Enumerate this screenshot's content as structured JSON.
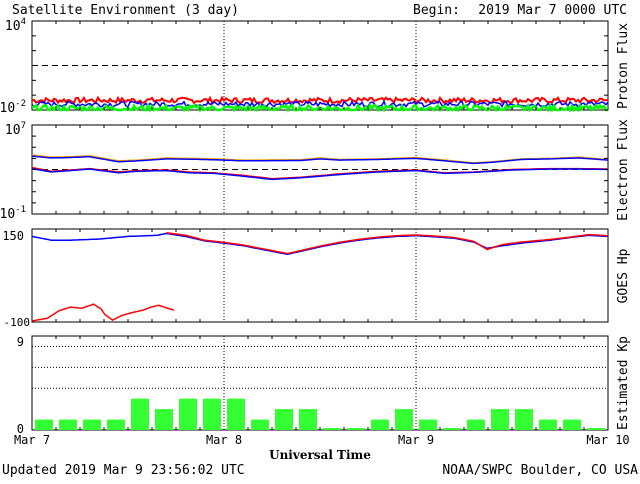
{
  "header": {
    "title": "Satellite Environment (3 day)",
    "begin_label": "Begin:",
    "begin_value": "2019 Mar 7 0000 UTC"
  },
  "footer": {
    "updated": "Updated 2019 Mar  9 23:56:02 UTC",
    "credit": "NOAA/SWPC Boulder, CO USA"
  },
  "colors": {
    "red": "#ff0000",
    "blue": "#0000ff",
    "green": "#00ff00",
    "orange": "#ffa500",
    "kp_bar": "#33ff33",
    "frame": "#000000"
  },
  "chart_data": [
    {
      "id": "proton",
      "type": "line",
      "ylabel": "Proton Flux",
      "yscale": "log",
      "ylim": [
        0.01,
        10000
      ],
      "tick_labels": {
        "top_base": "10",
        "top_exp": "4",
        "bottom_base": "10",
        "bottom_exp": "-2"
      },
      "threshold": 10,
      "series": [
        {
          "color": "#ff0000",
          "level": 0.045,
          "noise": 0.18,
          "width": 2
        },
        {
          "color": "#0000ff",
          "level": 0.025,
          "noise": 0.18,
          "width": 1.5
        },
        {
          "color": "#00ff00",
          "level": 0.013,
          "noise": 0.2,
          "width": 2.5
        }
      ]
    },
    {
      "id": "electron",
      "type": "line",
      "ylabel": "Electron Flux",
      "yscale": "log",
      "ylim": [
        0.1,
        10000000
      ],
      "tick_labels": {
        "top_base": "10",
        "top_exp": "7",
        "bottom_base": "10",
        "bottom_exp": "-1"
      },
      "threshold": 1000,
      "series": [
        {
          "color": "#ffa500",
          "points": [
            [
              0,
              20000
            ],
            [
              0.1,
              13000
            ],
            [
              0.2,
              14000
            ],
            [
              0.3,
              17000
            ],
            [
              0.45,
              6000
            ],
            [
              0.55,
              7000
            ],
            [
              0.7,
              11000
            ],
            [
              0.82,
              10000
            ],
            [
              0.95,
              9000
            ],
            [
              1.1,
              7000
            ],
            [
              1.4,
              7500
            ],
            [
              1.5,
              11000
            ],
            [
              1.6,
              8000
            ],
            [
              1.8,
              9000
            ],
            [
              2.0,
              12000
            ],
            [
              2.15,
              7000
            ],
            [
              2.3,
              4000
            ],
            [
              2.4,
              5000
            ],
            [
              2.55,
              9000
            ],
            [
              2.7,
              10000
            ],
            [
              2.85,
              13000
            ],
            [
              3.0,
              8000
            ]
          ]
        },
        {
          "color": "#0000ff",
          "points": [
            [
              0,
              16000
            ],
            [
              0.1,
              11000
            ],
            [
              0.2,
              12000
            ],
            [
              0.3,
              14000
            ],
            [
              0.45,
              5000
            ],
            [
              0.55,
              6000
            ],
            [
              0.7,
              9000
            ],
            [
              0.82,
              8500
            ],
            [
              0.95,
              7500
            ],
            [
              1.1,
              6000
            ],
            [
              1.4,
              6500
            ],
            [
              1.5,
              9000
            ],
            [
              1.6,
              7000
            ],
            [
              1.8,
              8000
            ],
            [
              2.0,
              10000
            ],
            [
              2.15,
              6000
            ],
            [
              2.3,
              3500
            ],
            [
              2.4,
              4500
            ],
            [
              2.55,
              8000
            ],
            [
              2.7,
              9000
            ],
            [
              2.85,
              11000
            ],
            [
              3.0,
              7000
            ]
          ]
        },
        {
          "color": "#ff0000",
          "points": [
            [
              0,
              1500
            ],
            [
              0.1,
              700
            ],
            [
              0.2,
              900
            ],
            [
              0.3,
              1200
            ],
            [
              0.45,
              600
            ],
            [
              0.55,
              800
            ],
            [
              0.7,
              900
            ],
            [
              0.82,
              600
            ],
            [
              0.95,
              500
            ],
            [
              1.1,
              300
            ],
            [
              1.25,
              150
            ],
            [
              1.4,
              200
            ],
            [
              1.6,
              400
            ],
            [
              1.8,
              700
            ],
            [
              2.0,
              900
            ],
            [
              2.15,
              500
            ],
            [
              2.3,
              600
            ],
            [
              2.5,
              1000
            ],
            [
              2.7,
              1200
            ],
            [
              2.85,
              1200
            ],
            [
              3.0,
              1100
            ]
          ]
        },
        {
          "color": "#0000ff",
          "points": [
            [
              0,
              1200
            ],
            [
              0.1,
              600
            ],
            [
              0.2,
              800
            ],
            [
              0.3,
              1100
            ],
            [
              0.45,
              500
            ],
            [
              0.55,
              700
            ],
            [
              0.7,
              800
            ],
            [
              0.82,
              500
            ],
            [
              0.95,
              450
            ],
            [
              1.1,
              250
            ],
            [
              1.25,
              130
            ],
            [
              1.4,
              180
            ],
            [
              1.6,
              350
            ],
            [
              1.8,
              600
            ],
            [
              2.0,
              800
            ],
            [
              2.15,
              450
            ],
            [
              2.3,
              550
            ],
            [
              2.5,
              900
            ],
            [
              2.7,
              1100
            ],
            [
              2.85,
              1100
            ],
            [
              3.0,
              1000
            ]
          ]
        }
      ]
    },
    {
      "id": "goes_hp",
      "type": "line",
      "ylabel": "GOES Hp",
      "ylim": [
        -100,
        150
      ],
      "tick_labels": {
        "top": "150",
        "bottom": "-100"
      },
      "series": [
        {
          "color": "#0000ff",
          "points": [
            [
              0,
              130
            ],
            [
              0.1,
              120
            ],
            [
              0.2,
              120
            ],
            [
              0.35,
              123
            ],
            [
              0.5,
              130
            ],
            [
              0.65,
              133
            ],
            [
              0.7,
              138
            ],
            [
              0.8,
              130
            ],
            [
              0.9,
              118
            ],
            [
              1.0,
              112
            ],
            [
              1.1,
              105
            ],
            [
              1.2,
              95
            ],
            [
              1.33,
              82
            ],
            [
              1.4,
              90
            ],
            [
              1.5,
              102
            ],
            [
              1.6,
              112
            ],
            [
              1.7,
              120
            ],
            [
              1.8,
              126
            ],
            [
              1.9,
              130
            ],
            [
              2.0,
              132
            ],
            [
              2.1,
              129
            ],
            [
              2.2,
              125
            ],
            [
              2.3,
              115
            ],
            [
              2.37,
              98
            ],
            [
              2.45,
              105
            ],
            [
              2.55,
              112
            ],
            [
              2.7,
              120
            ],
            [
              2.8,
              127
            ],
            [
              2.9,
              133
            ],
            [
              3.0,
              130
            ]
          ]
        },
        {
          "color": "#ff0000",
          "points": [
            [
              0.7,
              140
            ],
            [
              0.8,
              133
            ],
            [
              0.9,
              120
            ],
            [
              1.0,
              114
            ],
            [
              1.1,
              107
            ],
            [
              1.2,
              97
            ],
            [
              1.33,
              84
            ],
            [
              1.4,
              92
            ],
            [
              1.5,
              104
            ],
            [
              1.6,
              114
            ],
            [
              1.7,
              122
            ],
            [
              1.8,
              128
            ],
            [
              1.9,
              132
            ],
            [
              2.0,
              134
            ],
            [
              2.1,
              131
            ],
            [
              2.2,
              127
            ],
            [
              2.3,
              117
            ],
            [
              2.37,
              95
            ],
            [
              2.45,
              108
            ],
            [
              2.55,
              115
            ],
            [
              2.7,
              122
            ],
            [
              2.8,
              128
            ],
            [
              2.9,
              135
            ],
            [
              3.0,
              132
            ]
          ]
        },
        {
          "color": "#ff0000",
          "points": [
            [
              0,
              -97
            ],
            [
              0.08,
              -90
            ],
            [
              0.14,
              -70
            ],
            [
              0.2,
              -60
            ],
            [
              0.26,
              -63
            ],
            [
              0.32,
              -52
            ],
            [
              0.36,
              -65
            ],
            [
              0.38,
              -80
            ],
            [
              0.42,
              -95
            ],
            [
              0.47,
              -82
            ],
            [
              0.52,
              -75
            ],
            [
              0.58,
              -68
            ],
            [
              0.62,
              -60
            ],
            [
              0.66,
              -55
            ],
            [
              0.7,
              -62
            ],
            [
              0.74,
              -68
            ]
          ]
        }
      ]
    },
    {
      "id": "kp",
      "type": "bar",
      "ylabel": "Estimated Kp",
      "ylim": [
        0,
        9
      ],
      "tick_labels": {
        "top": "9",
        "bottom": "0"
      },
      "gridlines": [
        4,
        6,
        8
      ],
      "values": [
        1,
        1,
        1,
        1,
        3,
        2,
        3,
        3,
        3,
        1,
        2,
        2,
        0,
        0,
        1,
        2,
        1,
        0,
        1,
        2,
        2,
        1,
        1,
        0
      ]
    }
  ],
  "xaxis": {
    "title": "Universal Time",
    "ticks": [
      "Mar 7",
      "Mar 8",
      "Mar 9",
      "Mar 10"
    ]
  }
}
